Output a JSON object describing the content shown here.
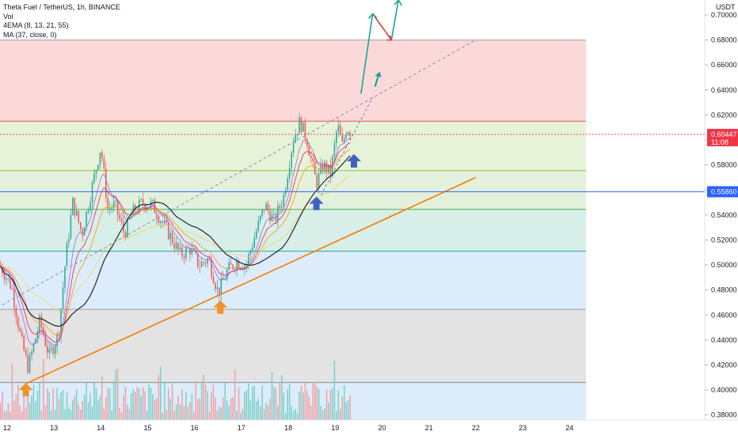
{
  "legend": {
    "title": "Theta Fuel / TetherUS, 1h, BINANCE",
    "vol": "Vol",
    "ema": "4EMA (8, 13, 21, 55)",
    "ma": "MA (37, close, 0)"
  },
  "currency": "USDT",
  "price_tag": {
    "value": "0.60447",
    "countdown": "11:08",
    "color": "#f23645"
  },
  "level_tag": {
    "value": "0.55860",
    "color": "#2962ff"
  },
  "chart_data": {
    "type": "candlestick",
    "x_ticks": [
      "12",
      "13",
      "14",
      "15",
      "16",
      "17",
      "18",
      "19",
      "20",
      "21",
      "22",
      "23",
      "24"
    ],
    "y_ticks": [
      "0.38000",
      "0.40000",
      "0.42000",
      "0.44000",
      "0.46000",
      "0.48000",
      "0.50000",
      "0.52000",
      "0.54000",
      "0.56000",
      "0.58000",
      "0.60000",
      "0.62000",
      "0.64000",
      "0.66000",
      "0.68000",
      "0.70000"
    ],
    "ylim": [
      0.376,
      0.712
    ],
    "xlim": [
      11.85,
      24.35
    ],
    "fib_levels": [
      0.406,
      0.4645,
      0.511,
      0.5445,
      0.5755,
      0.615,
      0.68
    ],
    "fib_zone_colors": [
      "#dcecfb",
      "#e3e3e3",
      "#dcecfb",
      "#d8eee8",
      "#e3f1dc",
      "#e6f3d8",
      "#fcd9d9"
    ],
    "key_level": 0.5586,
    "current_price": 0.60447,
    "trendline": {
      "start": [
        12.4,
        0.405
      ],
      "end": [
        22.0,
        0.57
      ]
    },
    "channel_top": {
      "start": [
        11.9,
        0.468
      ],
      "end": [
        22.0,
        0.68
      ]
    },
    "channel_inner": {
      "start": [
        18.7,
        0.556
      ],
      "end": [
        19.8,
        0.634
      ]
    },
    "projection": [
      [
        19.55,
        0.637
      ],
      [
        19.8,
        0.701
      ],
      [
        20.2,
        0.68
      ],
      [
        20.35,
        0.712
      ]
    ],
    "arrows_up": [
      {
        "x": 12.4,
        "y": 0.4,
        "color": "#f0932b"
      },
      {
        "x": 16.55,
        "y": 0.466,
        "color": "#f0932b"
      },
      {
        "x": 18.6,
        "y": 0.549,
        "color": "#3d62c4"
      },
      {
        "x": 19.4,
        "y": 0.583,
        "color": "#3d62c4"
      }
    ],
    "arrow_teal": {
      "x": 19.9,
      "y": 0.649
    },
    "anchors": [
      [
        11.85,
        0.5
      ],
      [
        12.1,
        0.482
      ],
      [
        12.3,
        0.44
      ],
      [
        12.45,
        0.418
      ],
      [
        12.7,
        0.455
      ],
      [
        12.9,
        0.427
      ],
      [
        13.1,
        0.445
      ],
      [
        13.25,
        0.505
      ],
      [
        13.4,
        0.55
      ],
      [
        13.6,
        0.525
      ],
      [
        13.8,
        0.56
      ],
      [
        14.0,
        0.595
      ],
      [
        14.15,
        0.545
      ],
      [
        14.3,
        0.548
      ],
      [
        14.5,
        0.525
      ],
      [
        14.7,
        0.543
      ],
      [
        14.9,
        0.55
      ],
      [
        15.1,
        0.548
      ],
      [
        15.3,
        0.535
      ],
      [
        15.5,
        0.522
      ],
      [
        15.7,
        0.508
      ],
      [
        15.9,
        0.513
      ],
      [
        16.1,
        0.5
      ],
      [
        16.3,
        0.505
      ],
      [
        16.5,
        0.478
      ],
      [
        16.7,
        0.495
      ],
      [
        16.9,
        0.503
      ],
      [
        17.1,
        0.5
      ],
      [
        17.3,
        0.525
      ],
      [
        17.5,
        0.548
      ],
      [
        17.7,
        0.535
      ],
      [
        17.9,
        0.555
      ],
      [
        18.1,
        0.6
      ],
      [
        18.25,
        0.615
      ],
      [
        18.4,
        0.6
      ],
      [
        18.5,
        0.582
      ],
      [
        18.6,
        0.565
      ],
      [
        18.75,
        0.58
      ],
      [
        18.9,
        0.573
      ],
      [
        19.05,
        0.612
      ],
      [
        19.15,
        0.595
      ],
      [
        19.25,
        0.611
      ],
      [
        19.35,
        0.6045
      ]
    ]
  }
}
